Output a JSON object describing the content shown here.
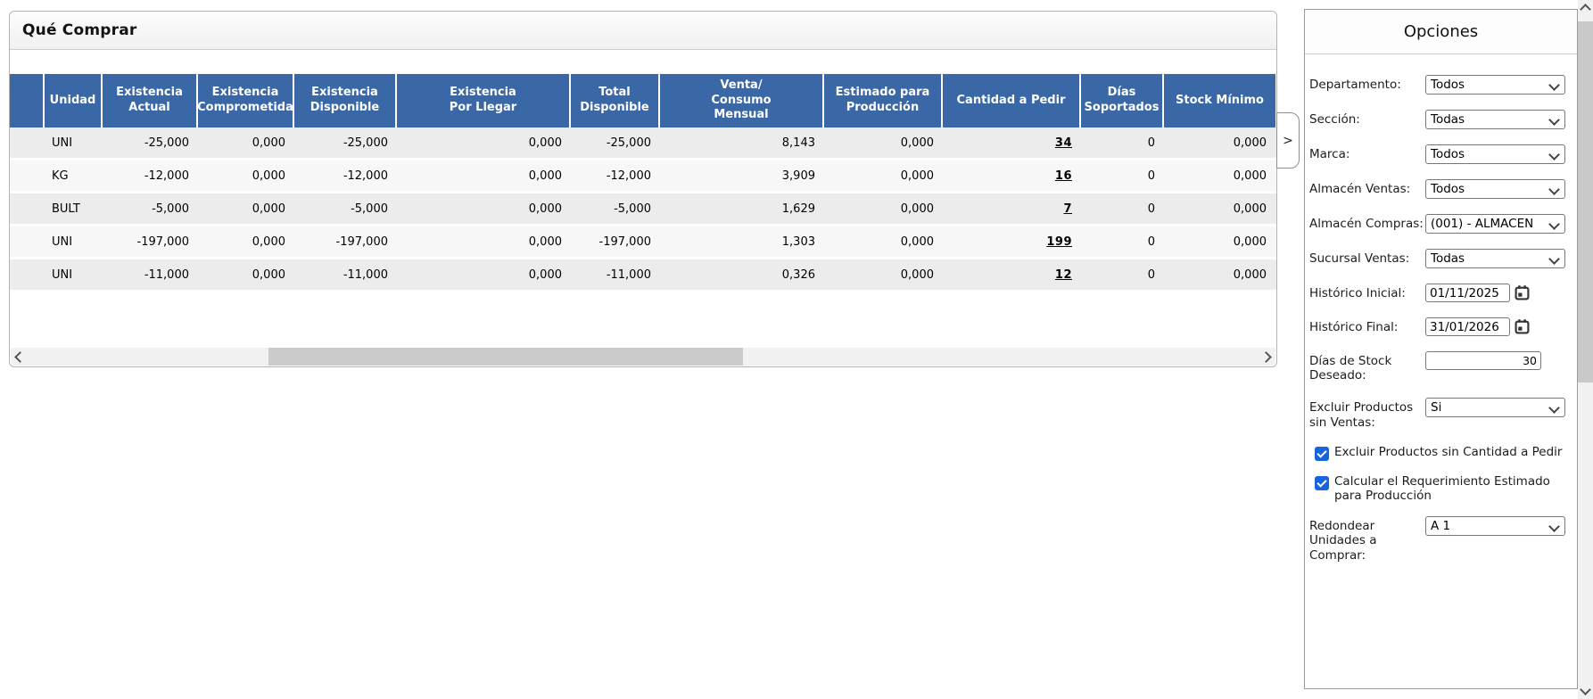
{
  "main_panel": {
    "title": "Qué Comprar",
    "expander_label": ">"
  },
  "table": {
    "columns": [
      "",
      "Unidad",
      "Existencia\nActual",
      "Existencia\nComprometida",
      "Existencia\nDisponible",
      "Existencia\nPor Llegar",
      "Total\nDisponible",
      "Venta/\nConsumo\nMensual",
      "Estimado para\nProducción",
      "Cantidad a Pedir",
      "Días\nSoportados",
      "Stock Mínimo"
    ],
    "rows": [
      [
        "",
        "UNI",
        "-25,000",
        "0,000",
        "-25,000",
        "0,000",
        "-25,000",
        "8,143",
        "0,000",
        "34",
        "0",
        "0,000"
      ],
      [
        "",
        "KG",
        "-12,000",
        "0,000",
        "-12,000",
        "0,000",
        "-12,000",
        "3,909",
        "0,000",
        "16",
        "0",
        "0,000"
      ],
      [
        "",
        "BULT",
        "-5,000",
        "0,000",
        "-5,000",
        "0,000",
        "-5,000",
        "1,629",
        "0,000",
        "7",
        "0",
        "0,000"
      ],
      [
        "",
        "UNI",
        "-197,000",
        "0,000",
        "-197,000",
        "0,000",
        "-197,000",
        "1,303",
        "0,000",
        "199",
        "0",
        "0,000"
      ],
      [
        "",
        "UNI",
        "-11,000",
        "0,000",
        "-11,000",
        "0,000",
        "-11,000",
        "0,326",
        "0,000",
        "12",
        "0",
        "0,000"
      ]
    ]
  },
  "options": {
    "title": "Opciones",
    "fields": [
      {
        "id": "departamento",
        "type": "select",
        "label": "Departamento:",
        "value": "Todos"
      },
      {
        "id": "seccion",
        "type": "select",
        "label": "Sección:",
        "value": "Todas"
      },
      {
        "id": "marca",
        "type": "select",
        "label": "Marca:",
        "value": "Todos"
      },
      {
        "id": "almacen-ventas",
        "type": "select",
        "label": "Almacén Ventas:",
        "value": "Todos"
      },
      {
        "id": "almacen-compras",
        "type": "select",
        "label": "Almacén Compras:",
        "value": "(001) - ALMACEN"
      },
      {
        "id": "sucursal-ventas",
        "type": "select",
        "label": "Sucursal Ventas:",
        "value": "Todas"
      },
      {
        "id": "historico-inicial",
        "type": "date",
        "label": "Histórico Inicial:",
        "value": "01/11/2025"
      },
      {
        "id": "historico-final",
        "type": "date",
        "label": "Histórico Final:",
        "value": "31/01/2026"
      },
      {
        "id": "dias-stock-deseado",
        "type": "number",
        "label": "Días de Stock Deseado:",
        "value": "30"
      },
      {
        "id": "excluir-sin-ventas",
        "type": "select",
        "label": "Excluir Productos sin Ventas:",
        "value": "Si"
      },
      {
        "id": "excluir-sin-cantidad",
        "type": "checkbox",
        "label": "Excluir Productos sin Cantidad a Pedir",
        "checked": true
      },
      {
        "id": "calcular-requerimiento",
        "type": "checkbox",
        "label": "Calcular el Requerimiento Estimado para Producción",
        "checked": true
      },
      {
        "id": "redondear-unidades",
        "type": "select",
        "label": "Redondear Unidades a Comprar:",
        "value": "A 1"
      }
    ]
  },
  "colors": {
    "header_blue": "#3a67a5",
    "checkbox_blue": "#1665dd",
    "row_odd": "#ececec",
    "row_even": "#f7f7f7"
  }
}
